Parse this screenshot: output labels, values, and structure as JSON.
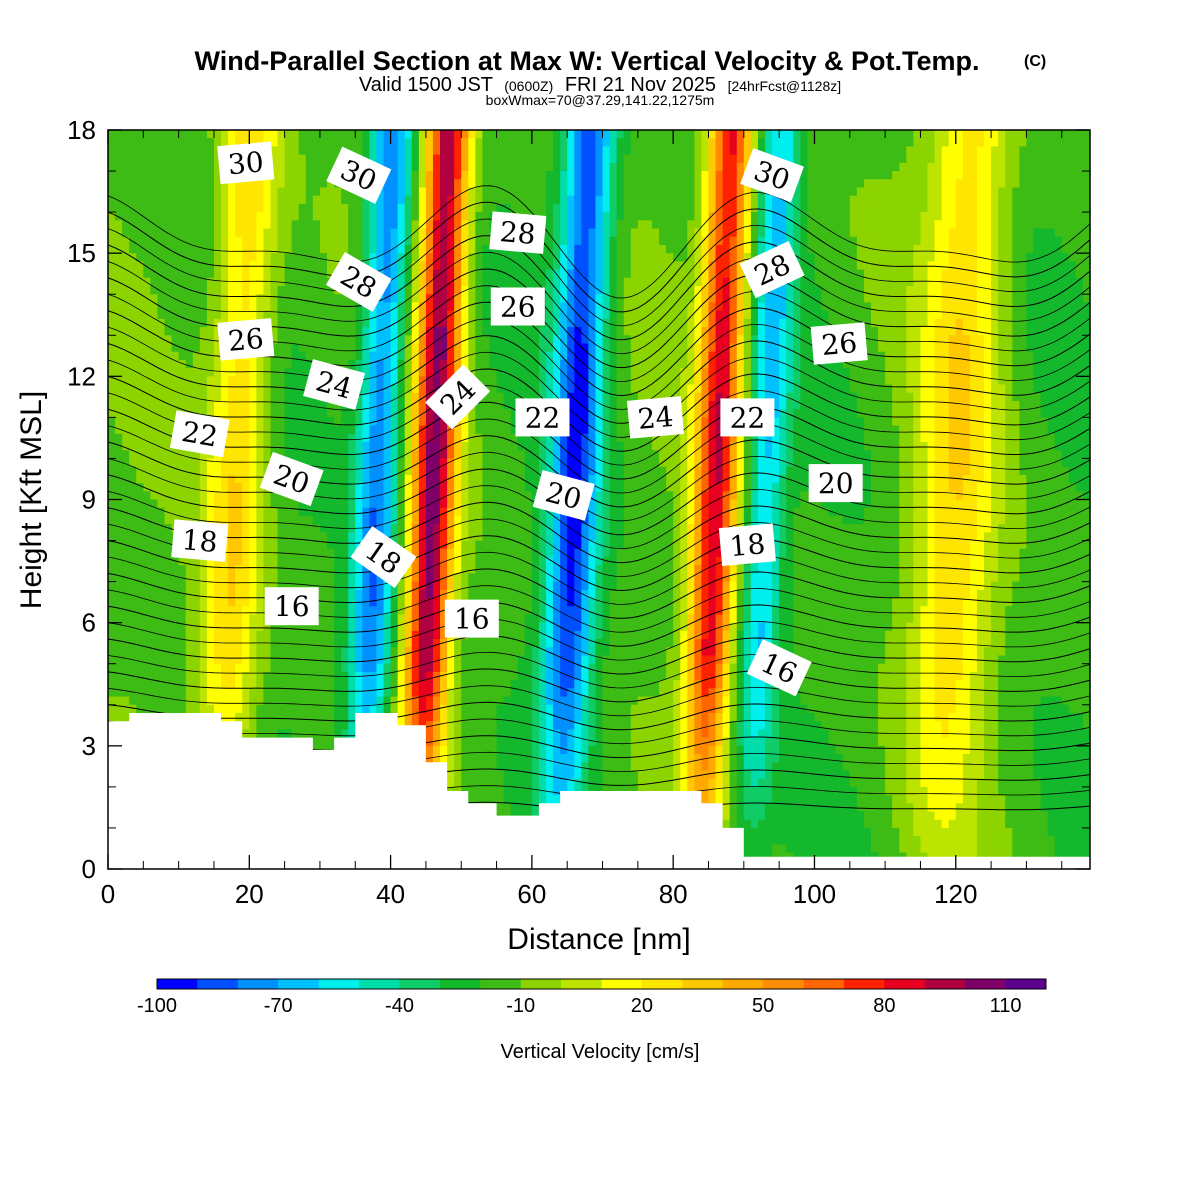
{
  "header": {
    "title": "Wind-Parallel Section at Max W: Vertical Velocity & Pot.Temp.",
    "title_suffix": "(C)",
    "subtitle_a": "Valid 1500 JST",
    "subtitle_b": "(0600Z)",
    "subtitle_c": "FRI 21 Nov 2025",
    "subtitle_d": "[24hrFcst@1128z]",
    "subtitle2": "boxWmax=70@37.29,141.22,1275m"
  },
  "chart_data": {
    "type": "heatmap",
    "xlabel": "Distance [nm]",
    "ylabel": "Height [Kft MSL]",
    "xlim": [
      0,
      139
    ],
    "ylim": [
      0,
      18
    ],
    "x_ticks": [
      0,
      20,
      40,
      60,
      80,
      100,
      120
    ],
    "y_ticks": [
      0,
      3,
      6,
      9,
      12,
      15,
      18
    ],
    "colorbar": {
      "label": "Vertical Velocity [cm/s]",
      "min": -100,
      "max": 130,
      "step": 10,
      "tick_values": [
        -100,
        -70,
        -40,
        -10,
        20,
        50,
        80,
        110
      ],
      "tick_labels": [
        "-100",
        "-70",
        "-40",
        "-10",
        "20",
        "50",
        "80",
        "110"
      ],
      "colors": [
        "#0000ff",
        "#0050ff",
        "#0090ff",
        "#00c0ff",
        "#00eeee",
        "#00dcaa",
        "#10cc66",
        "#14b82c",
        "#3cbc14",
        "#8cd400",
        "#bce400",
        "#ffff00",
        "#ffe600",
        "#ffc800",
        "#ffaa00",
        "#ff8c00",
        "#ff6600",
        "#ff2200",
        "#e80020",
        "#b00040",
        "#80006a",
        "#5c0090"
      ]
    },
    "w_bands": [
      {
        "x": 18,
        "w": 30,
        "sx": 3
      },
      {
        "x": 38,
        "w": -80,
        "sx": 2.2
      },
      {
        "x": 46,
        "w": 100,
        "sx": 2.2
      },
      {
        "x": 66,
        "w": -90,
        "sx": 2.5
      },
      {
        "x": 86,
        "w": 85,
        "sx": 2.2
      },
      {
        "x": 93,
        "w": -60,
        "sx": 2
      },
      {
        "x": 120,
        "w": 25,
        "sx": 4
      }
    ],
    "terrain_kft": [
      [
        0,
        3.6
      ],
      [
        3,
        3.6
      ],
      [
        3,
        3.8
      ],
      [
        16,
        3.8
      ],
      [
        16,
        3.6
      ],
      [
        19,
        3.6
      ],
      [
        19,
        3.2
      ],
      [
        29,
        3.2
      ],
      [
        29,
        2.9
      ],
      [
        32,
        2.9
      ],
      [
        32,
        3.2
      ],
      [
        35,
        3.2
      ],
      [
        35,
        3.8
      ],
      [
        41,
        3.8
      ],
      [
        41,
        3.5
      ],
      [
        45,
        3.5
      ],
      [
        45,
        2.6
      ],
      [
        48,
        2.6
      ],
      [
        48,
        1.9
      ],
      [
        51,
        1.9
      ],
      [
        51,
        1.6
      ],
      [
        55,
        1.6
      ],
      [
        55,
        1.3
      ],
      [
        61,
        1.3
      ],
      [
        61,
        1.6
      ],
      [
        64,
        1.6
      ],
      [
        64,
        1.9
      ],
      [
        84,
        1.9
      ],
      [
        84,
        1.6
      ],
      [
        87,
        1.6
      ],
      [
        87,
        1.0
      ],
      [
        90,
        1.0
      ],
      [
        90,
        0.3
      ],
      [
        139,
        0.3
      ]
    ],
    "theta_levels": [
      14,
      15,
      16,
      17,
      18,
      19,
      20,
      21,
      22,
      23,
      24,
      25,
      26,
      27,
      28,
      29,
      30,
      31,
      32
    ],
    "contour_labels": [
      {
        "text": "30",
        "x": 19.5,
        "z": 17.2,
        "rot": -5
      },
      {
        "text": "30",
        "x": 35.5,
        "z": 16.9,
        "rot": 25
      },
      {
        "text": "28",
        "x": 58,
        "z": 15.5,
        "rot": 5
      },
      {
        "text": "30",
        "x": 94,
        "z": 16.9,
        "rot": 20
      },
      {
        "text": "28",
        "x": 35.5,
        "z": 14.3,
        "rot": 30
      },
      {
        "text": "26",
        "x": 58,
        "z": 13.7,
        "rot": 0
      },
      {
        "text": "28",
        "x": 94,
        "z": 14.6,
        "rot": -25
      },
      {
        "text": "26",
        "x": 19.5,
        "z": 12.9,
        "rot": -5
      },
      {
        "text": "26",
        "x": 103.5,
        "z": 12.8,
        "rot": -5
      },
      {
        "text": "24",
        "x": 32,
        "z": 11.8,
        "rot": 15
      },
      {
        "text": "24",
        "x": 49.5,
        "z": 11.5,
        "rot": -45
      },
      {
        "text": "24",
        "x": 77.5,
        "z": 11.0,
        "rot": -5
      },
      {
        "text": "22",
        "x": 61.5,
        "z": 11.0,
        "rot": 0
      },
      {
        "text": "22",
        "x": 90.5,
        "z": 11.0,
        "rot": 0
      },
      {
        "text": "22",
        "x": 13,
        "z": 10.6,
        "rot": 10
      },
      {
        "text": "20",
        "x": 26,
        "z": 9.5,
        "rot": 20
      },
      {
        "text": "20",
        "x": 64.5,
        "z": 9.1,
        "rot": 15
      },
      {
        "text": "20",
        "x": 103,
        "z": 9.4,
        "rot": 0
      },
      {
        "text": "18",
        "x": 13,
        "z": 8.0,
        "rot": 5
      },
      {
        "text": "18",
        "x": 39,
        "z": 7.6,
        "rot": 35
      },
      {
        "text": "18",
        "x": 90.5,
        "z": 7.9,
        "rot": -5
      },
      {
        "text": "16",
        "x": 26,
        "z": 6.4,
        "rot": 0
      },
      {
        "text": "16",
        "x": 51.5,
        "z": 6.1,
        "rot": 0
      },
      {
        "text": "16",
        "x": 95,
        "z": 4.9,
        "rot": 25
      }
    ]
  }
}
